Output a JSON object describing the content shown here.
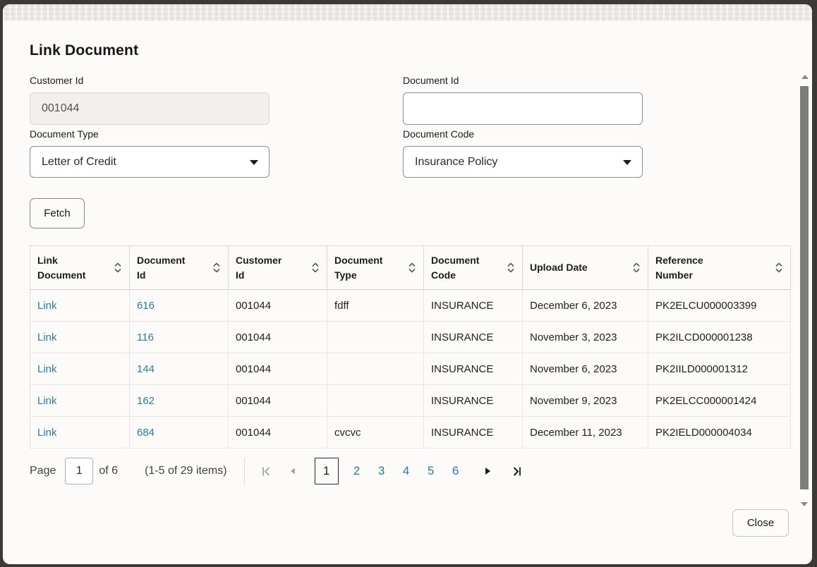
{
  "modal": {
    "title": "Link Document",
    "fields": {
      "customer_id": {
        "label": "Customer Id",
        "value": "001044"
      },
      "document_id": {
        "label": "Document Id",
        "value": "",
        "placeholder": ""
      },
      "document_type": {
        "label": "Document Type",
        "value": "Letter of Credit"
      },
      "document_code": {
        "label": "Document Code",
        "value": "Insurance Policy"
      }
    },
    "buttons": {
      "fetch": "Fetch",
      "close": "Close"
    }
  },
  "table": {
    "columns": [
      "Link Document",
      "Document Id",
      "Customer Id",
      "Document Type",
      "Document Code",
      "Upload Date",
      "Reference Number"
    ],
    "cell_keys": [
      "link",
      "document_id",
      "customer_id",
      "document_type",
      "document_code",
      "upload_date",
      "reference_number"
    ],
    "link_keys": [
      "link",
      "document_id"
    ],
    "rows": [
      {
        "link": "Link",
        "document_id": "616",
        "customer_id": "001044",
        "document_type": "fdff",
        "document_code": "INSURANCE",
        "upload_date": "December 6, 2023",
        "reference_number": "PK2ELCU000003399"
      },
      {
        "link": "Link",
        "document_id": "116",
        "customer_id": "001044",
        "document_type": "",
        "document_code": "INSURANCE",
        "upload_date": "November 3, 2023",
        "reference_number": "PK2ILCD000001238"
      },
      {
        "link": "Link",
        "document_id": "144",
        "customer_id": "001044",
        "document_type": "",
        "document_code": "INSURANCE",
        "upload_date": "November 6, 2023",
        "reference_number": "PK2IILD000001312"
      },
      {
        "link": "Link",
        "document_id": "162",
        "customer_id": "001044",
        "document_type": "",
        "document_code": "INSURANCE",
        "upload_date": "November 9, 2023",
        "reference_number": "PK2ELCC000001424"
      },
      {
        "link": "Link",
        "document_id": "684",
        "customer_id": "001044",
        "document_type": "cvcvc",
        "document_code": "INSURANCE",
        "upload_date": "December 11, 2023",
        "reference_number": "PK2IELD000004034"
      }
    ]
  },
  "pagination": {
    "page_label": "Page",
    "page_value": "1",
    "of_label": "of 6",
    "items_label": "(1-5 of 29 items)",
    "pages": [
      "1",
      "2",
      "3",
      "4",
      "5",
      "6"
    ],
    "current_page": "1"
  },
  "icons": {
    "sort": "sort-chevrons",
    "dropdown": "caret-down",
    "first": "first-page",
    "prev": "previous-page",
    "next": "next-page",
    "last": "last-page",
    "scroll_up": "scroll-up-arrow",
    "scroll_down": "scroll-down-arrow"
  },
  "colors": {
    "link": "#2a7d9c",
    "text": "#161513",
    "frame": "#3b3a39",
    "panel_bg": "#fcfbfa",
    "readonly_bg": "#f2f0ee"
  }
}
